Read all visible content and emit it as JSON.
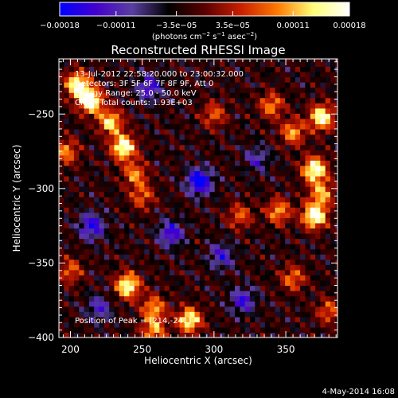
{
  "chart_data": {
    "type": "heatmap",
    "title": "Reconstructed RHESSI Image",
    "xlabel": "Heliocentric X (arcsec)",
    "ylabel": "Heliocentric Y (arcsec)",
    "xlim": [
      192,
      386
    ],
    "ylim": [
      -400,
      -213
    ],
    "x_ticks": [
      {
        "value": 200,
        "label": "200"
      },
      {
        "value": 250,
        "label": "250"
      },
      {
        "value": 300,
        "label": "300"
      },
      {
        "value": 350,
        "label": "350"
      }
    ],
    "y_ticks": [
      {
        "value": -250,
        "label": "−250"
      },
      {
        "value": -300,
        "label": "−300"
      },
      {
        "value": -350,
        "label": "−350"
      },
      {
        "value": -400,
        "label": "−400"
      }
    ],
    "colorbar": {
      "range": [
        -0.00018,
        0.00018
      ],
      "ticks": [
        {
          "value": -0.00018,
          "label": "−0.00018"
        },
        {
          "value": -0.00011,
          "label": "−0.00011"
        },
        {
          "value": -3.5e-05,
          "label": "−3.5e−05"
        },
        {
          "value": 3.5e-05,
          "label": "3.5e−05"
        },
        {
          "value": 0.00011,
          "label": "0.00011"
        },
        {
          "value": 0.00018,
          "label": "0.00018"
        }
      ],
      "units": {
        "base": "(photons cm",
        "exp1": "−2",
        "mid": " s",
        "exp2": "−1",
        "mid2": " asec",
        "exp3": "−2",
        "end": ")"
      },
      "colors": [
        "#0000ff",
        "#4400cc",
        "#5a3fa0",
        "#000000",
        "#5a0000",
        "#c81e00",
        "#ff7800",
        "#ffff78",
        "#ffffff"
      ]
    },
    "annotations": [
      "13-Jul-2012 22:58:20.000 to 23:00:32.000",
      "Detectors: 3F 5F 6F 7F 8F 9F, Att 0",
      "Energy Range: 25.0 - 50.0 keV",
      "Clean     Total counts: 1.93E+03"
    ],
    "peak_label": "Position of Peak = [214,-241]",
    "peak": {
      "x": 214,
      "y": -241
    },
    "hotspots": [
      {
        "x": 214,
        "y": -241,
        "v": 1.0
      },
      {
        "x": 205,
        "y": -230,
        "v": 0.9
      },
      {
        "x": 228,
        "y": -255,
        "v": 0.75
      },
      {
        "x": 237,
        "y": -272,
        "v": 0.95
      },
      {
        "x": 245,
        "y": -290,
        "v": 0.55
      },
      {
        "x": 197,
        "y": -275,
        "v": 0.55
      },
      {
        "x": 200,
        "y": -355,
        "v": 0.45
      },
      {
        "x": 250,
        "y": -305,
        "v": 0.45
      },
      {
        "x": 240,
        "y": -365,
        "v": 0.9
      },
      {
        "x": 258,
        "y": -380,
        "v": 0.6
      },
      {
        "x": 283,
        "y": -388,
        "v": 0.85
      },
      {
        "x": 258,
        "y": -395,
        "v": 0.6
      },
      {
        "x": 340,
        "y": -244,
        "v": 0.55
      },
      {
        "x": 375,
        "y": -252,
        "v": 0.9
      },
      {
        "x": 355,
        "y": -262,
        "v": 0.6
      },
      {
        "x": 370,
        "y": -287,
        "v": 0.95
      },
      {
        "x": 375,
        "y": -303,
        "v": 0.6
      },
      {
        "x": 370,
        "y": -318,
        "v": 1.0
      },
      {
        "x": 345,
        "y": -315,
        "v": 0.6
      },
      {
        "x": 318,
        "y": -318,
        "v": 0.45
      },
      {
        "x": 355,
        "y": -360,
        "v": 0.5
      },
      {
        "x": 380,
        "y": -382,
        "v": 0.45
      },
      {
        "x": 300,
        "y": -250,
        "v": 0.45
      }
    ],
    "coldspots": [
      {
        "x": 290,
        "y": -295,
        "v": -0.8
      },
      {
        "x": 270,
        "y": -330,
        "v": -0.55
      },
      {
        "x": 215,
        "y": -325,
        "v": -0.6
      },
      {
        "x": 255,
        "y": -232,
        "v": -0.5
      },
      {
        "x": 320,
        "y": -375,
        "v": -0.5
      },
      {
        "x": 305,
        "y": -345,
        "v": -0.45
      },
      {
        "x": 330,
        "y": -280,
        "v": -0.35
      },
      {
        "x": 220,
        "y": -380,
        "v": -0.4
      }
    ]
  },
  "footer": {
    "timestamp": "4-May-2014 16:08"
  }
}
